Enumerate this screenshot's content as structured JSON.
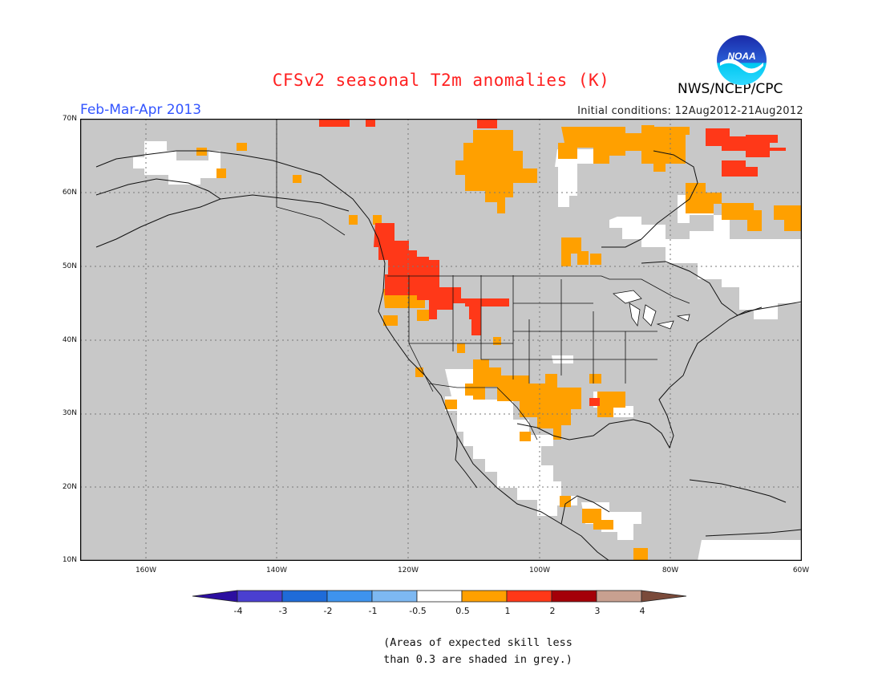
{
  "header": {
    "title": "CFSv2 seasonal T2m anomalies (K)",
    "season": "Feb-Mar-Apr 2013",
    "initial_conditions": "Initial conditions: 12Aug2012-21Aug2012",
    "agency": "NWS/NCEP/CPC",
    "logo_text": "NOAA"
  },
  "map": {
    "projection": "lat-lon",
    "lon_range": [
      "170W",
      "60W"
    ],
    "lat_range": [
      "10N",
      "70N"
    ],
    "background_color": "#c8c8c8",
    "gridlines": "dotted",
    "lat_labels": [
      "70N",
      "60N",
      "50N",
      "40N",
      "30N",
      "20N",
      "10N"
    ],
    "lon_labels": [
      "160W",
      "140W",
      "120W",
      "100W",
      "80W",
      "60W"
    ],
    "anomaly_regions": [
      "Western Canada / Pacific Northwest: +1 to +2 K",
      "Northern Canada and Baffin region: +0.5 to +2 K",
      "Southern Plains / Texas / Gulf Coast: +0.5 to +1 K",
      "Eastern Canada / Hudson Bay: -0.5 to 0.5 K",
      "Mexico and Central America: -0.5 to 0.5 K with +0.5 to +1 K patches"
    ]
  },
  "colorbar": {
    "labels": [
      "-4",
      "-3",
      "-2",
      "-1",
      "-0.5",
      "0.5",
      "1",
      "2",
      "3",
      "4"
    ],
    "colors": [
      "#2c0fa0",
      "#4a3fd0",
      "#1f6bd8",
      "#3e93ee",
      "#7db8f2",
      "#ffffff",
      "#ffa000",
      "#ff3818",
      "#a40008",
      "#c8a090",
      "#7a4a3a"
    ]
  },
  "footnote": {
    "line1": "(Areas of expected skill less",
    "line2": "than 0.3 are shaded in grey.)"
  }
}
